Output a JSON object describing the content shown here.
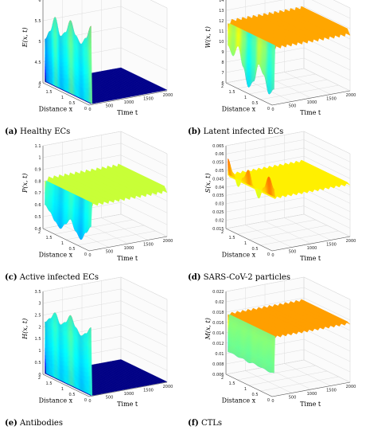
{
  "chart_data": [
    {
      "type": "surface",
      "panel_tag": "(a)",
      "caption": "Healthy ECs",
      "zlabel": "E(x, t)",
      "xlabel": "Distance x",
      "ylabel": "Time t",
      "x_ticks": [
        "0",
        "0.5",
        "1",
        "1.5",
        "2"
      ],
      "t_ticks": [
        "0",
        "500",
        "1000",
        "1500",
        "2000"
      ],
      "z_ticks": [
        "4",
        "4.5",
        "5",
        "5.5",
        "6"
      ],
      "z_exponent": "",
      "zlim": [
        4,
        6
      ],
      "xlim": [
        0,
        2
      ],
      "tlim": [
        0,
        2000
      ],
      "initial_profile": [
        5.9,
        5.55,
        5.35,
        5.5,
        5.8,
        5.45,
        5.3,
        5.7,
        5.3,
        5.05
      ],
      "steady_value": 4.02,
      "steady_ripple": 0.0
    },
    {
      "type": "surface",
      "panel_tag": "(b)",
      "caption": "Latent infected ECs",
      "zlabel": "W(x, t)",
      "xlabel": "Distance x",
      "ylabel": "Time t",
      "x_ticks": [
        "0",
        "0.5",
        "1",
        "1.5",
        "2"
      ],
      "t_ticks": [
        "0",
        "500",
        "1000",
        "1500",
        "2000"
      ],
      "z_ticks": [
        "6",
        "7",
        "8",
        "9",
        "10",
        "11",
        "12",
        "13",
        "14"
      ],
      "z_exponent": "×10⁻³",
      "zlim": [
        6,
        14
      ],
      "xlim": [
        0,
        2
      ],
      "tlim": [
        0,
        2000
      ],
      "initial_profile": [
        7.5,
        6.8,
        8.4,
        9.2,
        7.3,
        6.5,
        8.2,
        10.0,
        8.8,
        9.6
      ],
      "steady_value": 11.7,
      "steady_ripple": 0.35
    },
    {
      "type": "surface",
      "panel_tag": "(c)",
      "caption": "Active infected ECs",
      "zlabel": "P(x, t)",
      "xlabel": "Distance x",
      "ylabel": "Time t",
      "x_ticks": [
        "0",
        "0.5",
        "1",
        "1.5",
        "2"
      ],
      "t_ticks": [
        "0",
        "500",
        "1000",
        "1500",
        "2000"
      ],
      "z_ticks": [
        "0.4",
        "0.5",
        "0.6",
        "0.7",
        "0.8",
        "0.9",
        "1",
        "1.1"
      ],
      "z_exponent": "",
      "zlim": [
        0.4,
        1.1
      ],
      "xlim": [
        0,
        2
      ],
      "tlim": [
        0,
        2000
      ],
      "initial_profile": [
        0.6,
        0.53,
        0.45,
        0.5,
        0.58,
        0.52,
        0.46,
        0.5,
        0.56,
        0.6
      ],
      "steady_value": 0.8,
      "steady_ripple": 0.03
    },
    {
      "type": "surface",
      "panel_tag": "(d)",
      "caption": "SARS-CoV-2 particles",
      "zlabel": "S(x, t)",
      "xlabel": "Distance x",
      "ylabel": "Time t",
      "x_ticks": [
        "0",
        "0.5",
        "1",
        "1.5",
        "2"
      ],
      "t_ticks": [
        "0",
        "500",
        "1000",
        "1500",
        "2000"
      ],
      "z_ticks": [
        "0.015",
        "0.02",
        "0.025",
        "0.03",
        "0.035",
        "0.04",
        "0.045",
        "0.05",
        "0.055",
        "0.06",
        "0.065"
      ],
      "z_exponent": "",
      "zlim": [
        0.015,
        0.065
      ],
      "xlim": [
        0,
        2
      ],
      "tlim": [
        0,
        2000
      ],
      "initial_profile": [
        0.052,
        0.058,
        0.05,
        0.042,
        0.048,
        0.056,
        0.05,
        0.043,
        0.05,
        0.057
      ],
      "steady_value": 0.047,
      "steady_ripple": 0.001
    },
    {
      "type": "surface",
      "panel_tag": "(e)",
      "caption": "Antibodies",
      "zlabel": "H(x, t)",
      "xlabel": "Distance x",
      "ylabel": "Time t",
      "x_ticks": [
        "0",
        "0.5",
        "1",
        "1.5",
        "2"
      ],
      "t_ticks": [
        "0",
        "500",
        "1000",
        "1500",
        "2000"
      ],
      "z_ticks": [
        "0",
        "0.5",
        "1",
        "1.5",
        "2",
        "2.5",
        "3",
        "3.5"
      ],
      "z_exponent": "",
      "zlim": [
        0,
        3.5
      ],
      "xlim": [
        0,
        2
      ],
      "tlim": [
        0,
        2000
      ],
      "initial_profile": [
        2.9,
        2.55,
        2.35,
        2.6,
        3.0,
        2.6,
        2.4,
        2.8,
        2.45,
        2.2
      ],
      "steady_value": 0.02,
      "steady_ripple": 0.0
    },
    {
      "type": "surface",
      "panel_tag": "(f)",
      "caption": "CTLs",
      "zlabel": "M(x, t)",
      "xlabel": "Distance x",
      "ylabel": "Time t",
      "x_ticks": [
        "0",
        "0.5",
        "1",
        "1.5",
        "2"
      ],
      "t_ticks": [
        "0",
        "500",
        "1000",
        "1500",
        "2000"
      ],
      "z_ticks": [
        "0.006",
        "0.008",
        "0.01",
        "0.012",
        "0.014",
        "0.016",
        "0.018",
        "0.02",
        "0.022"
      ],
      "z_exponent": "",
      "zlim": [
        0.006,
        0.022
      ],
      "xlim": [
        0,
        2
      ],
      "tlim": [
        0,
        2000
      ],
      "initial_profile": [
        0.0105,
        0.0102,
        0.0104,
        0.0103,
        0.0105,
        0.0101,
        0.0104,
        0.0102,
        0.0104,
        0.0103
      ],
      "steady_value": 0.0175,
      "steady_ripple": 0.0003
    }
  ]
}
